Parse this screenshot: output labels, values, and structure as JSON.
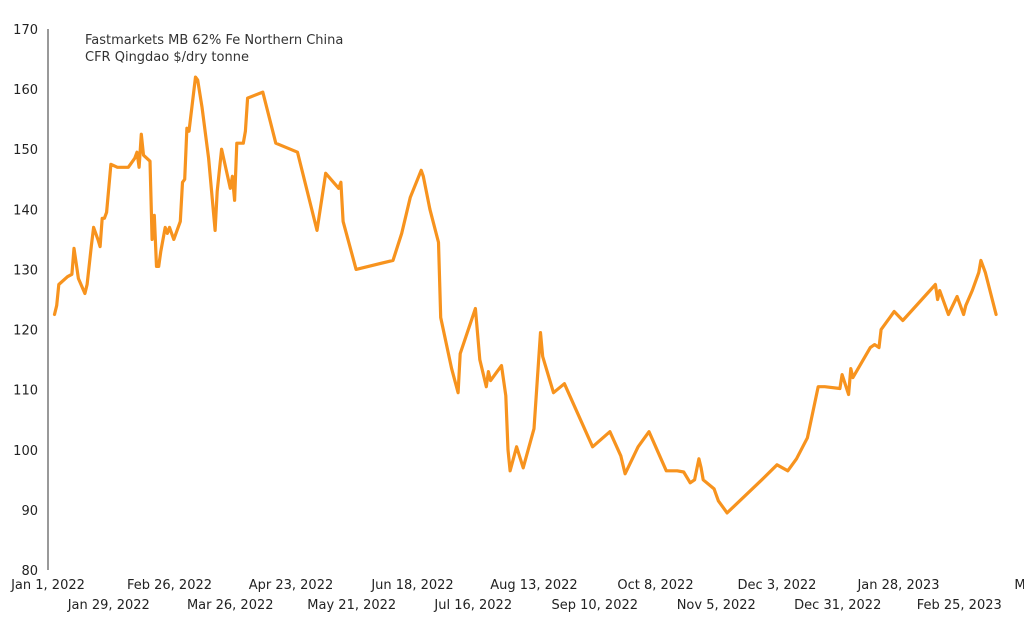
{
  "chart_data": {
    "type": "line",
    "title": "",
    "xlabel": "",
    "ylabel": "",
    "legend": "top-left",
    "legend_lines": [
      "Fastmarkets MB 62% Fe Northern China",
      "CFR Qingdao $/dry tonne"
    ],
    "grid": false,
    "ylim": [
      80,
      170
    ],
    "yticks": [
      80,
      90,
      100,
      110,
      120,
      130,
      140,
      150,
      160,
      170
    ],
    "xlim": [
      "2022-01-01",
      "2023-03-25"
    ],
    "xticks_row1": [
      "Jan 1, 2022",
      "Feb 26, 2022",
      "Apr 23, 2022",
      "Jun 18, 2022",
      "Aug 13, 2022",
      "Oct 8, 2022",
      "Dec 3, 2022",
      "Jan 28, 2023",
      "M"
    ],
    "xticks_row2": [
      "Jan 29, 2022",
      "Mar 26, 2022",
      "May 21, 2022",
      "Jul 16, 2022",
      "Sep 10, 2022",
      "Nov 5, 2022",
      "Dec 31, 2022",
      "Feb 25, 2023"
    ],
    "xtick_dates_row1": [
      "2022-01-01",
      "2022-02-26",
      "2022-04-23",
      "2022-06-18",
      "2022-08-13",
      "2022-10-08",
      "2022-12-03",
      "2023-01-28",
      "2023-03-25"
    ],
    "xtick_dates_row2": [
      "2022-01-29",
      "2022-03-26",
      "2022-05-21",
      "2022-07-16",
      "2022-09-10",
      "2022-11-05",
      "2022-12-31",
      "2023-02-25"
    ],
    "colors": {
      "series": "#F7931E",
      "axis": "#333333",
      "text": "#222222"
    },
    "series": [
      {
        "name": "Fastmarkets MB 62% Fe Northern China CFR Qingdao $/dry tonne",
        "points": [
          [
            "2022-01-04",
            122.5
          ],
          [
            "2022-01-05",
            124
          ],
          [
            "2022-01-06",
            127.5
          ],
          [
            "2022-01-10",
            128.8
          ],
          [
            "2022-01-12",
            129.2
          ],
          [
            "2022-01-13",
            133.5
          ],
          [
            "2022-01-14",
            131
          ],
          [
            "2022-01-15",
            128.5
          ],
          [
            "2022-01-18",
            126
          ],
          [
            "2022-01-19",
            127.5
          ],
          [
            "2022-01-21",
            134
          ],
          [
            "2022-01-22",
            137
          ],
          [
            "2022-01-24",
            135
          ],
          [
            "2022-01-25",
            133.8
          ],
          [
            "2022-01-26",
            138.5
          ],
          [
            "2022-01-27",
            138.5
          ],
          [
            "2022-01-28",
            139.5
          ],
          [
            "2022-01-30",
            147.5
          ],
          [
            "2022-02-02",
            147
          ],
          [
            "2022-02-07",
            147
          ],
          [
            "2022-02-10",
            148.5
          ],
          [
            "2022-02-11",
            149.5
          ],
          [
            "2022-02-12",
            147
          ],
          [
            "2022-02-13",
            152.5
          ],
          [
            "2022-02-14",
            149
          ],
          [
            "2022-02-17",
            148
          ],
          [
            "2022-02-18",
            135
          ],
          [
            "2022-02-19",
            139
          ],
          [
            "2022-02-20",
            130.5
          ],
          [
            "2022-02-21",
            130.5
          ],
          [
            "2022-02-22",
            133
          ],
          [
            "2022-02-24",
            137
          ],
          [
            "2022-02-25",
            136
          ],
          [
            "2022-02-26",
            137
          ],
          [
            "2022-02-28",
            135
          ],
          [
            "2022-03-03",
            138
          ],
          [
            "2022-03-04",
            144.5
          ],
          [
            "2022-03-05",
            145
          ],
          [
            "2022-03-06",
            153.5
          ],
          [
            "2022-03-07",
            153
          ],
          [
            "2022-03-10",
            162
          ],
          [
            "2022-03-11",
            161.5
          ],
          [
            "2022-03-13",
            157
          ],
          [
            "2022-03-16",
            148.5
          ],
          [
            "2022-03-19",
            136.5
          ],
          [
            "2022-03-20",
            143
          ],
          [
            "2022-03-22",
            150
          ],
          [
            "2022-03-26",
            143.5
          ],
          [
            "2022-03-27",
            145.5
          ],
          [
            "2022-03-28",
            141.5
          ],
          [
            "2022-03-29",
            151
          ],
          [
            "2022-04-01",
            151
          ],
          [
            "2022-04-02",
            153
          ],
          [
            "2022-04-03",
            158.5
          ],
          [
            "2022-04-10",
            159.5
          ],
          [
            "2022-04-16",
            151
          ],
          [
            "2022-04-26",
            149.5
          ],
          [
            "2022-05-05",
            136.5
          ],
          [
            "2022-05-09",
            146
          ],
          [
            "2022-05-15",
            143.5
          ],
          [
            "2022-05-16",
            144.5
          ],
          [
            "2022-05-17",
            138
          ],
          [
            "2022-05-23",
            130
          ],
          [
            "2022-06-09",
            131.5
          ],
          [
            "2022-06-13",
            136
          ],
          [
            "2022-06-17",
            142
          ],
          [
            "2022-06-22",
            146.5
          ],
          [
            "2022-06-23",
            145.5
          ],
          [
            "2022-06-26",
            140
          ],
          [
            "2022-06-30",
            134.5
          ],
          [
            "2022-07-01",
            122
          ],
          [
            "2022-07-06",
            113.5
          ],
          [
            "2022-07-09",
            109.5
          ],
          [
            "2022-07-10",
            116
          ],
          [
            "2022-07-17",
            123.5
          ],
          [
            "2022-07-19",
            115
          ],
          [
            "2022-07-22",
            110.5
          ],
          [
            "2022-07-23",
            113
          ],
          [
            "2022-07-24",
            111.5
          ],
          [
            "2022-07-29",
            114
          ],
          [
            "2022-07-31",
            109
          ],
          [
            "2022-08-01",
            100
          ],
          [
            "2022-08-02",
            96.5
          ],
          [
            "2022-08-05",
            100.5
          ],
          [
            "2022-08-08",
            97
          ],
          [
            "2022-08-13",
            103.5
          ],
          [
            "2022-08-16",
            119.5
          ],
          [
            "2022-08-17",
            115.5
          ],
          [
            "2022-08-22",
            109.5
          ],
          [
            "2022-08-27",
            111
          ],
          [
            "2022-09-09",
            100.5
          ],
          [
            "2022-09-17",
            103
          ],
          [
            "2022-09-22",
            99
          ],
          [
            "2022-09-24",
            96
          ],
          [
            "2022-09-30",
            100.5
          ],
          [
            "2022-10-05",
            103
          ],
          [
            "2022-10-13",
            96.5
          ],
          [
            "2022-10-18",
            96.5
          ],
          [
            "2022-10-21",
            96.3
          ],
          [
            "2022-10-24",
            94.5
          ],
          [
            "2022-10-26",
            95
          ],
          [
            "2022-10-28",
            98.5
          ],
          [
            "2022-10-29",
            97
          ],
          [
            "2022-10-30",
            95
          ],
          [
            "2022-11-04",
            93.5
          ],
          [
            "2022-11-06",
            91.5
          ],
          [
            "2022-11-10",
            89.5
          ],
          [
            "2022-11-26",
            95
          ],
          [
            "2022-12-03",
            97.5
          ],
          [
            "2022-12-08",
            96.5
          ],
          [
            "2022-12-12",
            98.5
          ],
          [
            "2022-12-17",
            102
          ],
          [
            "2022-12-22",
            110.5
          ],
          [
            "2022-12-25",
            110.5
          ],
          [
            "2023-01-01",
            110.2
          ],
          [
            "2023-01-02",
            112.5
          ],
          [
            "2023-01-05",
            109.2
          ],
          [
            "2023-01-06",
            113.5
          ],
          [
            "2023-01-07",
            112
          ],
          [
            "2023-01-15",
            117
          ],
          [
            "2023-01-17",
            117.5
          ],
          [
            "2023-01-19",
            117
          ],
          [
            "2023-01-20",
            120
          ],
          [
            "2023-01-26",
            123
          ],
          [
            "2023-01-30",
            121.5
          ],
          [
            "2023-02-14",
            127.5
          ],
          [
            "2023-02-15",
            125
          ],
          [
            "2023-02-16",
            126.5
          ],
          [
            "2023-02-20",
            122.5
          ],
          [
            "2023-02-24",
            125.5
          ],
          [
            "2023-02-27",
            122.5
          ],
          [
            "2023-02-28",
            124
          ],
          [
            "2023-03-03",
            126.5
          ],
          [
            "2023-03-06",
            129.5
          ],
          [
            "2023-03-07",
            131.5
          ],
          [
            "2023-03-09",
            129.5
          ],
          [
            "2023-03-14",
            122.5
          ]
        ]
      }
    ]
  }
}
